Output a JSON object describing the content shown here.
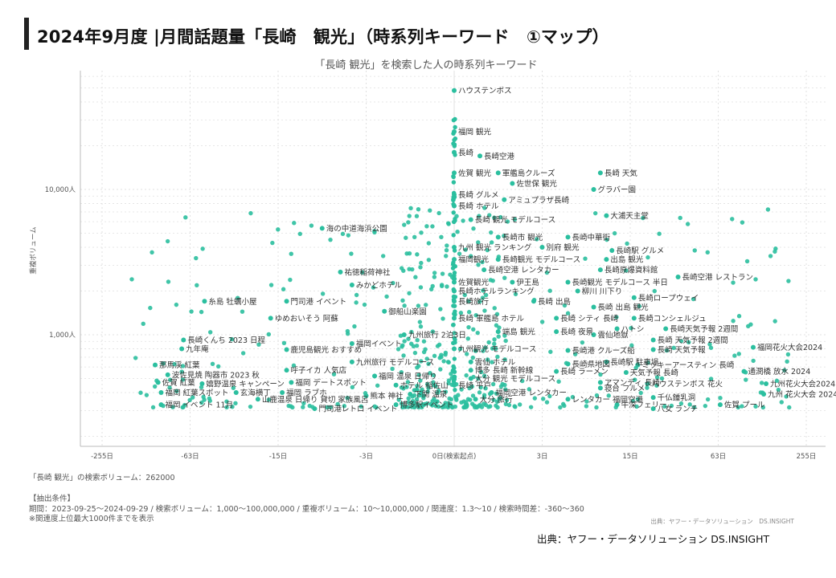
{
  "page_title": "2024年9月度 |月間話題量「長崎　観光」（時系列キーワード　①マップ）",
  "footer": {
    "volume_note": "「長崎 観光」の検索ボリューム：262000",
    "conditions_heading": "【抽出条件】",
    "conditions": "期間：2023-09-25〜2024-09-29 / 検索ボリューム：1,000〜100,000,000 / 重複ボリューム：10〜10,000,000 / 関連度：1.3〜10 / 検索時間差：-360〜360",
    "note": "※関連度上位最大1000件までを表示",
    "credit_small": "出典：ヤフー・データソリューション　DS.INSIGHT",
    "credit_main": "出典：ヤフー・データソリューション DS.INSIGHT"
  },
  "colors": {
    "point": "#2bbf9f",
    "grid": "#e0e0e0",
    "axis": "#bbbbbb"
  },
  "chart_data": {
    "type": "scatter",
    "title": "「長崎 観光」を検索した人の時系列キーワード",
    "xlabel": "",
    "ylabel": "重複ボリューム",
    "xscale": "symlog",
    "yscale": "log",
    "x_ticks": [
      "-255日",
      "-63日",
      "-15日",
      "-3日",
      "0日(検索起点)",
      "3日",
      "15日",
      "63日",
      "255日"
    ],
    "y_ticks": [
      "1,000人",
      "10,000人"
    ],
    "xlim": [
      "-360日",
      "360日"
    ],
    "grid": true,
    "labeled_points": [
      {
        "label": "ハウステンボス",
        "x": 0,
        "y": 48000
      },
      {
        "label": "福岡 観光",
        "x": 0,
        "y": 25000
      },
      {
        "label": "長崎",
        "x": 0,
        "y": 18000
      },
      {
        "label": "長崎空港",
        "x": 0.5,
        "y": 17000
      },
      {
        "label": "佐賀 観光",
        "x": 0,
        "y": 13000
      },
      {
        "label": "軍艦島クルーズ",
        "x": 1,
        "y": 13000
      },
      {
        "label": "長崎 天気",
        "x": 9,
        "y": 13000
      },
      {
        "label": "佐世保 観光",
        "x": 1.5,
        "y": 11000
      },
      {
        "label": "グラバー園",
        "x": 8,
        "y": 10000
      },
      {
        "label": "長崎 グルメ",
        "x": 0,
        "y": 9200
      },
      {
        "label": "アミュプラザ長崎",
        "x": 1.2,
        "y": 8500
      },
      {
        "label": "長崎 ホテル",
        "x": 0,
        "y": 7700
      },
      {
        "label": "大浦天主堂",
        "x": 10,
        "y": 6600
      },
      {
        "label": "長崎 観光 モデルコース",
        "x": 0.3,
        "y": 6200
      },
      {
        "label": "海の中道海浜公園",
        "x": -7,
        "y": 5400
      },
      {
        "label": "長崎市 観光",
        "x": 1,
        "y": 4700
      },
      {
        "label": "長崎中華街",
        "x": 5,
        "y": 4700
      },
      {
        "label": "九州 観光 ランキング",
        "x": 0,
        "y": 4000
      },
      {
        "label": "別府 観光",
        "x": 3,
        "y": 4000
      },
      {
        "label": "長崎駅 グルメ",
        "x": 11,
        "y": 3800
      },
      {
        "label": "福岡観光",
        "x": 0,
        "y": 3300
      },
      {
        "label": "長崎観光 モデルコース",
        "x": 1,
        "y": 3300
      },
      {
        "label": "出島 観光",
        "x": 10,
        "y": 3300
      },
      {
        "label": "祐徳稲荷神社",
        "x": -5,
        "y": 2700
      },
      {
        "label": "長崎空港 レンタカー",
        "x": 0.6,
        "y": 2800
      },
      {
        "label": "長崎原爆資料館",
        "x": 9,
        "y": 2800
      },
      {
        "label": "長崎空港 レストラン",
        "x": 33,
        "y": 2500
      },
      {
        "label": "みかどホテル",
        "x": -4,
        "y": 2200
      },
      {
        "label": "佐賀観光",
        "x": 0,
        "y": 2300
      },
      {
        "label": "伊王島",
        "x": 1.5,
        "y": 2300
      },
      {
        "label": "長崎観光 モデルコース 半日",
        "x": 5,
        "y": 2300
      },
      {
        "label": "長崎ホテルランキング",
        "x": 0,
        "y": 2000
      },
      {
        "label": "柳川 川下り",
        "x": 6,
        "y": 2000
      },
      {
        "label": "長崎ロープウェイ",
        "x": 16,
        "y": 1800
      },
      {
        "label": "糸島 牡蠣小屋",
        "x": -50,
        "y": 1700
      },
      {
        "label": "門司港 イベント",
        "x": -13,
        "y": 1700
      },
      {
        "label": "長崎旅行",
        "x": 0,
        "y": 1700
      },
      {
        "label": "長崎 出島",
        "x": 2.5,
        "y": 1700
      },
      {
        "label": "長崎 出島 観光",
        "x": 8,
        "y": 1550
      },
      {
        "label": "御船山楽園",
        "x": -2,
        "y": 1450
      },
      {
        "label": "ゆめおいそう 阿蘇",
        "x": -17,
        "y": 1300
      },
      {
        "label": "長崎 軍艦島 ホテル",
        "x": 0,
        "y": 1300
      },
      {
        "label": "長崎 シティ 長崎",
        "x": 4,
        "y": 1300
      },
      {
        "label": "長崎コンシェルジュ",
        "x": 16,
        "y": 1300
      },
      {
        "label": "ハトシ",
        "x": 12,
        "y": 1100
      },
      {
        "label": "長崎天気予報 2週間",
        "x": 27,
        "y": 1100
      },
      {
        "label": "九州旅行 2泊3日",
        "x": -1.2,
        "y": 1000
      },
      {
        "label": "端島 観光",
        "x": 1,
        "y": 1050
      },
      {
        "label": "長崎 夜景",
        "x": 4,
        "y": 1050
      },
      {
        "label": "雲仙地獄",
        "x": 8,
        "y": 1000
      },
      {
        "label": "長崎くんち 2023 日程",
        "x": -70,
        "y": 920
      },
      {
        "label": "長崎 天気予報 2週間",
        "x": 22,
        "y": 920
      },
      {
        "label": "福岡イベント",
        "x": -4,
        "y": 870
      },
      {
        "label": "九年庵",
        "x": -72,
        "y": 800
      },
      {
        "label": "鹿児島観光 おすすめ",
        "x": -13,
        "y": 790
      },
      {
        "label": "九州観光 モデルコース",
        "x": 0,
        "y": 800
      },
      {
        "label": "長崎港 クルーズ船",
        "x": 5,
        "y": 780
      },
      {
        "label": "長崎 天気予報",
        "x": 22,
        "y": 790
      },
      {
        "label": "福岡花火大会2024",
        "x": 110,
        "y": 820
      },
      {
        "label": "九州旅行 モデルコース",
        "x": -4,
        "y": 650
      },
      {
        "label": "雲仙 ホテル",
        "x": 0.3,
        "y": 650
      },
      {
        "label": "長崎県地図",
        "x": 5,
        "y": 630
      },
      {
        "label": "長崎駅 駐車場",
        "x": 10,
        "y": 650
      },
      {
        "label": "ミッキーアースティン 長崎",
        "x": 17,
        "y": 620
      },
      {
        "label": "那馬渓 紅葉",
        "x": -110,
        "y": 620
      },
      {
        "label": "呼子イカ 人気店",
        "x": -13,
        "y": 570
      },
      {
        "label": "博多 長崎 新幹線",
        "x": 0.3,
        "y": 570
      },
      {
        "label": "長崎 ラーメン",
        "x": 4,
        "y": 560
      },
      {
        "label": "天気予報 長崎",
        "x": 14,
        "y": 550
      },
      {
        "label": "通潤橋 放水 2024",
        "x": 95,
        "y": 560
      },
      {
        "label": "波佐見焼 陶器市 2023 秋",
        "x": -90,
        "y": 530
      },
      {
        "label": "福岡 温泉 日帰り",
        "x": -2.5,
        "y": 520
      },
      {
        "label": "大分 観光 モデルコース",
        "x": 0.3,
        "y": 500
      },
      {
        "label": "アマンディ 長崎",
        "x": 9,
        "y": 470
      },
      {
        "label": "ハウステンボス 花火",
        "x": 20,
        "y": 460
      },
      {
        "label": "九州花火大会2024",
        "x": 135,
        "y": 460
      },
      {
        "label": "佐賀 紅葉",
        "x": -105,
        "y": 470
      },
      {
        "label": "嬉野温泉 キャンペーン",
        "x": -52,
        "y": 460
      },
      {
        "label": "福岡 デートスポット",
        "x": -12,
        "y": 470
      },
      {
        "label": "ホテル 稲佐山",
        "x": -1.5,
        "y": 450
      },
      {
        "label": "長崎 平戸",
        "x": 0,
        "y": 450
      },
      {
        "label": "寝台 フルメ",
        "x": 9,
        "y": 430
      },
      {
        "label": "福岡 紅葉スポット",
        "x": -100,
        "y": 400
      },
      {
        "label": "玄海横丁",
        "x": -30,
        "y": 400
      },
      {
        "label": "福岡 ラブホ",
        "x": -14,
        "y": 400
      },
      {
        "label": "熊本 神社",
        "x": -3,
        "y": 380
      },
      {
        "label": "下関 温泉",
        "x": -1,
        "y": 390
      },
      {
        "label": "福岡空港 レンタカー",
        "x": 0.8,
        "y": 400
      },
      {
        "label": "九州 花火大会 2024",
        "x": 130,
        "y": 390
      },
      {
        "label": "千仏鍾乳洞",
        "x": 22,
        "y": 370
      },
      {
        "label": "山鹿温泉 日帰り 貸切 家族風呂",
        "x": -21,
        "y": 360
      },
      {
        "label": "大分 旅行",
        "x": 0.4,
        "y": 360
      },
      {
        "label": "レンタカー 福岡空港",
        "x": 5,
        "y": 360
      },
      {
        "label": "福岡 イベント 11月",
        "x": -100,
        "y": 330
      },
      {
        "label": "博多駅イベント",
        "x": -1.5,
        "y": 330
      },
      {
        "label": "牛深フェリー",
        "x": 12,
        "y": 330
      },
      {
        "label": "佐賀 プール",
        "x": 65,
        "y": 330
      },
      {
        "label": "門司港レトロ イベント",
        "x": -8,
        "y": 310
      },
      {
        "label": "八女 ランチ",
        "x": 22,
        "y": 310
      }
    ]
  }
}
